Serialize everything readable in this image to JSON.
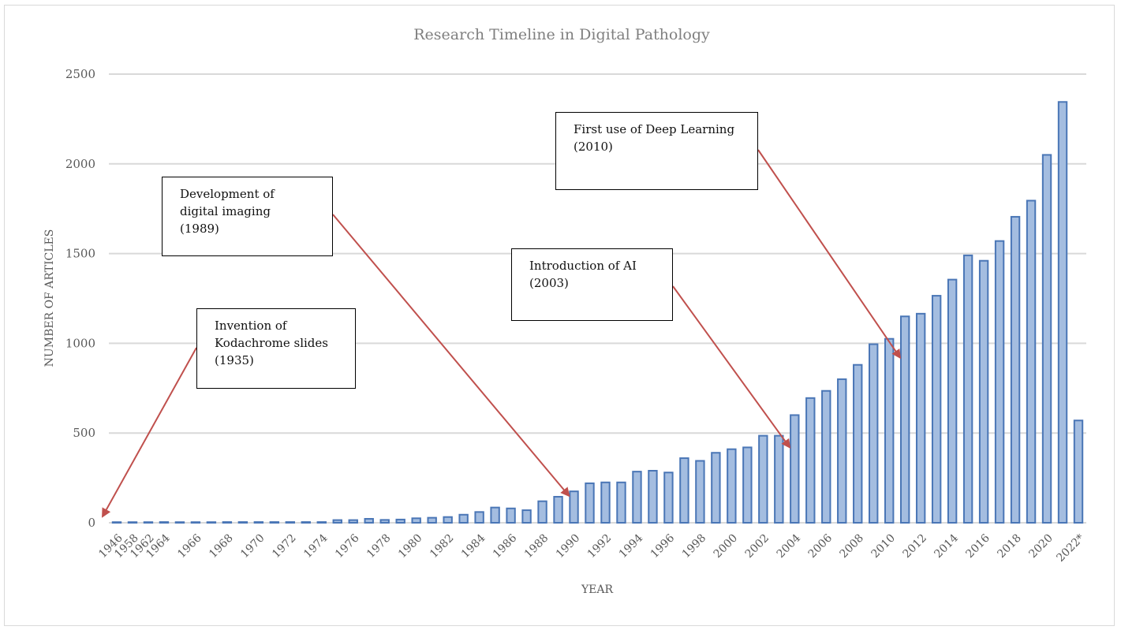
{
  "chart_data": {
    "type": "bar",
    "title": "Research Timeline in Digital Pathology",
    "xlabel": "YEAR",
    "ylabel": "NUMBER OF ARTICLES",
    "ylim": [
      0,
      2500
    ],
    "yticks": [
      0,
      500,
      1000,
      1500,
      2000,
      2500
    ],
    "grid": true,
    "legend": "none",
    "bar_color": "#a4bde0",
    "bar_edge_color": "#4a76b6",
    "arrow_color": "#c0504d",
    "categories": [
      "1946",
      "1958",
      "1962",
      "1964",
      "1966",
      "1968",
      "1970",
      "1972",
      "1974",
      "1976",
      "1978",
      "1980",
      "1982",
      "1984",
      "1986",
      "1988",
      "1990",
      "1992",
      "1994",
      "1996",
      "1998",
      "2000",
      "2002",
      "2004",
      "2006",
      "2008",
      "2010",
      "2012",
      "2014",
      "2016",
      "2018",
      "2020",
      "2022*"
    ],
    "x": [
      1946,
      1958,
      1962,
      1964,
      1965,
      1966,
      1967,
      1968,
      1969,
      1970,
      1971,
      1972,
      1973,
      1974,
      1975,
      1976,
      1977,
      1978,
      1979,
      1980,
      1981,
      1982,
      1983,
      1984,
      1985,
      1986,
      1987,
      1988,
      1989,
      1990,
      1991,
      1992,
      1993,
      1994,
      1995,
      1996,
      1997,
      1998,
      1999,
      2000,
      2001,
      2002,
      2003,
      2004,
      2005,
      2006,
      2007,
      2008,
      2009,
      2010,
      2011,
      2012,
      2013,
      2014,
      2015,
      2016,
      2017,
      2018,
      2019,
      2020,
      2021,
      2022
    ],
    "values": [
      1,
      1,
      1,
      4,
      1,
      1,
      3,
      4,
      4,
      4,
      4,
      4,
      4,
      4,
      15,
      15,
      22,
      16,
      18,
      25,
      28,
      32,
      45,
      60,
      85,
      80,
      70,
      120,
      145,
      175,
      220,
      225,
      225,
      285,
      290,
      280,
      360,
      345,
      390,
      410,
      420,
      485,
      485,
      600,
      695,
      735,
      800,
      880,
      995,
      1025,
      1150,
      1165,
      1265,
      1355,
      1490,
      1460,
      1570,
      1705,
      1795,
      2050,
      2345,
      570
    ],
    "annotations": [
      {
        "text": "Invention of\nKodachrome slides\n(1935)",
        "target_x": 1946,
        "target_y": 0
      },
      {
        "text": "Development of\ndigital imaging\n(1989)",
        "target_x": 1990,
        "target_y": 150
      },
      {
        "text": "Introduction of AI\n(2003)",
        "target_x": 2004,
        "target_y": 420
      },
      {
        "text": "First use of Deep Learning\n(2010)",
        "target_x": 2011,
        "target_y": 920
      }
    ]
  }
}
